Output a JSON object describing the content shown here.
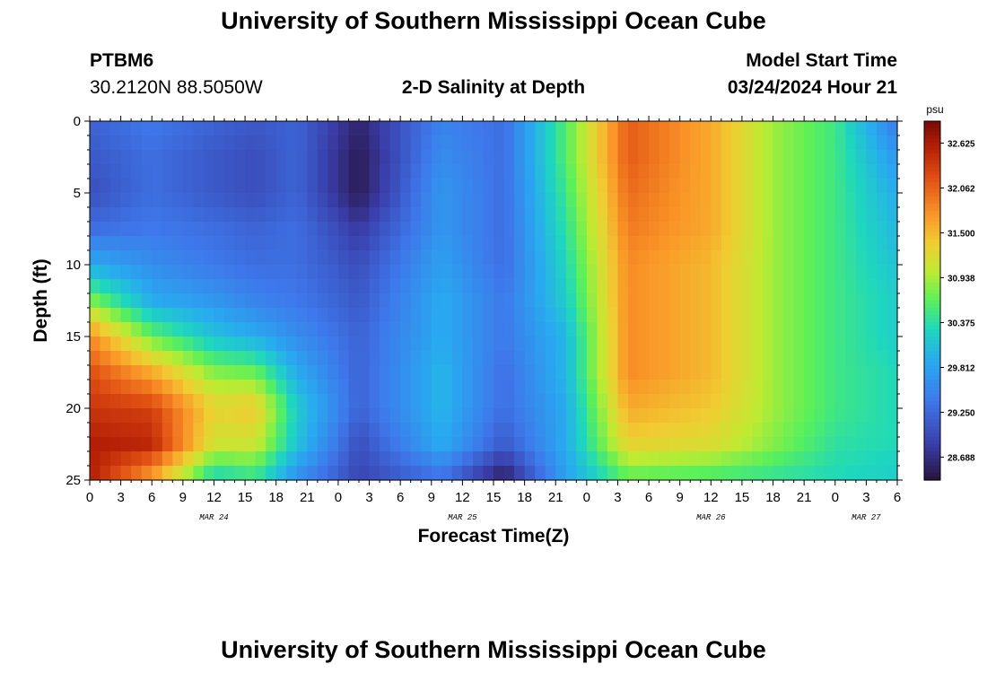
{
  "header": {
    "title": "University of Southern Mississippi Ocean Cube",
    "station_id": "PTBM6",
    "coordinates": "30.2120N  88.5050W",
    "plot_title": "2-D Salinity at Depth",
    "model_start_label": "Model Start Time",
    "model_start_value": "03/24/2024 Hour 21"
  },
  "footer": {
    "title": "University of Southern Mississippi Ocean Cube"
  },
  "chart_data": {
    "type": "heatmap",
    "title": "2-D Salinity at Depth",
    "xlabel": "Forecast Time(Z)",
    "ylabel": "Depth (ft)",
    "x_unit": "hours since 00Z Mar 24",
    "xlim": [
      0,
      78
    ],
    "ylim": [
      0,
      25
    ],
    "y_inverted": true,
    "x_tick_labels": [
      "0",
      "3",
      "6",
      "9",
      "12",
      "15",
      "18",
      "21",
      "0",
      "3",
      "6",
      "9",
      "12",
      "15",
      "18",
      "21",
      "0",
      "3",
      "6",
      "9",
      "12",
      "15",
      "18",
      "21",
      "0",
      "3",
      "6"
    ],
    "y_tick_labels": [
      "0",
      "5",
      "10",
      "15",
      "20",
      "25"
    ],
    "month_labels": [
      {
        "label": "MAR 24",
        "x": 12
      },
      {
        "label": "MAR 25",
        "x": 36
      },
      {
        "label": "MAR 26",
        "x": 60
      },
      {
        "label": "MAR 27",
        "x": 75
      }
    ],
    "colorbar": {
      "unit": "psu",
      "min": 28.4,
      "max": 32.9,
      "tick_labels": [
        "32.625",
        "32.062",
        "31.500",
        "30.938",
        "30.375",
        "29.812",
        "29.250",
        "28.688"
      ]
    },
    "depth_profile_ft": [
      0,
      2.5,
      5,
      7.5,
      10,
      12.5,
      15,
      17.5,
      20,
      22.5,
      25
    ],
    "salinity_snapshots": [
      {
        "hour": 0,
        "values": [
          29.2,
          29.1,
          29.0,
          29.3,
          29.9,
          30.8,
          31.8,
          32.2,
          32.4,
          32.6,
          32.6
        ]
      },
      {
        "hour": 6,
        "values": [
          29.4,
          29.3,
          29.3,
          29.4,
          29.6,
          29.9,
          30.7,
          31.6,
          32.3,
          32.5,
          31.6
        ]
      },
      {
        "hour": 12,
        "values": [
          29.2,
          29.1,
          29.1,
          29.3,
          29.4,
          29.7,
          30.1,
          30.8,
          31.3,
          31.1,
          30.2
        ]
      },
      {
        "hour": 16,
        "values": [
          29.1,
          29.0,
          29.0,
          29.2,
          29.3,
          29.5,
          29.9,
          30.7,
          31.4,
          31.1,
          30.4
        ]
      },
      {
        "hour": 20,
        "values": [
          29.2,
          29.2,
          29.2,
          29.3,
          29.3,
          29.4,
          29.6,
          29.9,
          30.2,
          30.1,
          29.6
        ]
      },
      {
        "hour": 26,
        "values": [
          28.6,
          28.5,
          28.5,
          28.8,
          29.0,
          29.1,
          29.2,
          29.2,
          29.2,
          29.0,
          28.9
        ]
      },
      {
        "hour": 34,
        "values": [
          29.5,
          29.6,
          29.7,
          29.7,
          29.8,
          29.9,
          29.9,
          30.0,
          30.0,
          29.9,
          29.3
        ]
      },
      {
        "hour": 40,
        "values": [
          29.3,
          29.3,
          29.3,
          29.3,
          29.3,
          29.4,
          29.4,
          29.3,
          29.3,
          29.1,
          28.5
        ]
      },
      {
        "hour": 46,
        "values": [
          30.6,
          30.6,
          30.5,
          30.4,
          30.3,
          30.2,
          30.0,
          30.0,
          29.9,
          29.9,
          29.8
        ]
      },
      {
        "hour": 52,
        "values": [
          32.1,
          32.1,
          32.0,
          31.9,
          31.8,
          31.8,
          31.8,
          31.8,
          31.6,
          31.3,
          30.6
        ]
      },
      {
        "hour": 60,
        "values": [
          31.6,
          31.6,
          31.6,
          31.6,
          31.5,
          31.5,
          31.5,
          31.5,
          31.4,
          31.2,
          30.5
        ]
      },
      {
        "hour": 66,
        "values": [
          30.9,
          30.9,
          30.9,
          30.9,
          30.9,
          30.9,
          30.9,
          30.9,
          30.9,
          30.8,
          30.4
        ]
      },
      {
        "hour": 72,
        "values": [
          30.5,
          30.5,
          30.5,
          30.5,
          30.5,
          30.5,
          30.5,
          30.5,
          30.5,
          30.4,
          30.3
        ]
      },
      {
        "hour": 78,
        "values": [
          29.4,
          29.7,
          29.9,
          30.0,
          30.1,
          30.2,
          30.2,
          30.3,
          30.3,
          30.3,
          30.2
        ]
      }
    ]
  }
}
